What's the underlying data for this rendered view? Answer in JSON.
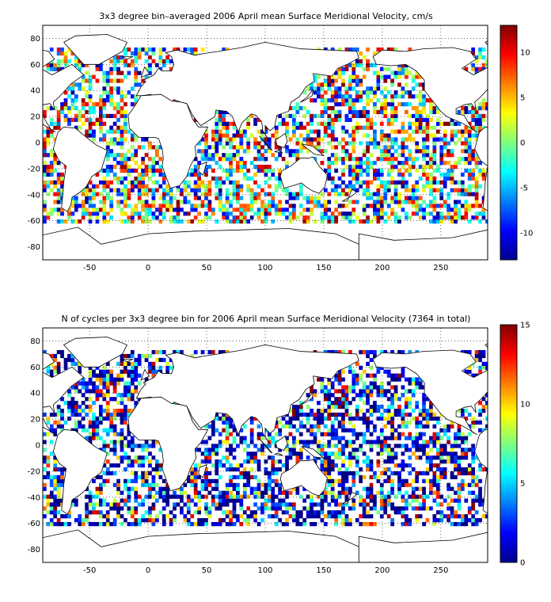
{
  "chart_data": [
    {
      "type": "heatmap",
      "title": "3x3 degree bin–averaged 2006 April mean Surface Meridional Velocity, cm/s",
      "bin_size_deg": 3,
      "xlim": [
        -90,
        290
      ],
      "ylim": [
        -90,
        90
      ],
      "x_ticks": [
        "-50",
        "0",
        "50",
        "100",
        "150",
        "200",
        "250"
      ],
      "y_ticks": [
        "80",
        "60",
        "40",
        "20",
        "0",
        "-20",
        "-40",
        "-60",
        "-80"
      ],
      "grid": true,
      "colorbar": {
        "min": -13,
        "max": 13,
        "ticks": [
          "10",
          "5",
          "0",
          "-5",
          "-10"
        ],
        "colormap": "jet"
      },
      "colors": {
        "low": "#00008f",
        "mid": "#7fff7f",
        "high": "#800000"
      }
    },
    {
      "type": "heatmap",
      "title": "N of cycles per 3x3 degree bin for 2006 April mean Surface Meridional Velocity (7364 in total)",
      "bin_size_deg": 3,
      "xlim": [
        -90,
        290
      ],
      "ylim": [
        -90,
        90
      ],
      "x_ticks": [
        "-50",
        "0",
        "50",
        "100",
        "150",
        "200",
        "250"
      ],
      "y_ticks": [
        "80",
        "60",
        "40",
        "20",
        "0",
        "-20",
        "-40",
        "-60",
        "-80"
      ],
      "grid": true,
      "colorbar": {
        "min": 0,
        "max": 15,
        "ticks": [
          "15",
          "10",
          "5",
          "0"
        ],
        "colormap": "jet"
      },
      "colors": {
        "low": "#00008f",
        "high": "#800000"
      }
    }
  ]
}
